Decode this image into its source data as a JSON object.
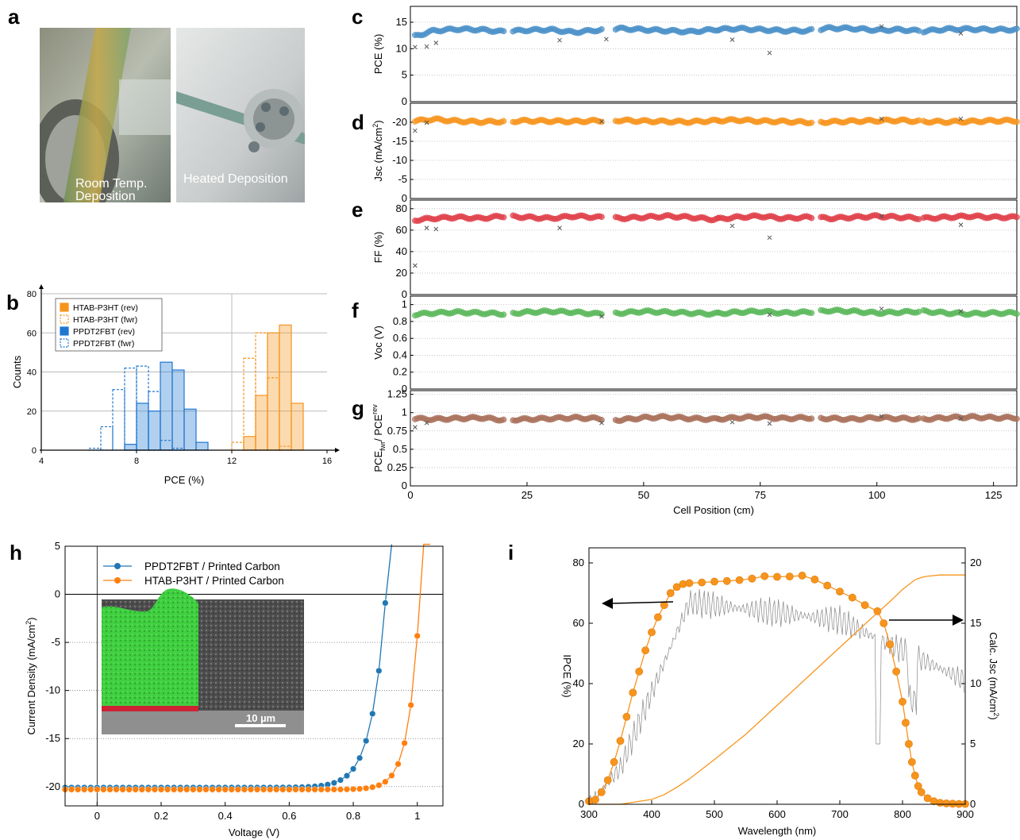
{
  "panel_letters": [
    "a",
    "b",
    "c",
    "d",
    "e",
    "f",
    "g",
    "h",
    "i"
  ],
  "photos": {
    "left_label_line1": "Room Temp.",
    "left_label_line2": "Deposition",
    "right_label": "Heated Deposition"
  },
  "colors": {
    "blue": "#4a90c8",
    "orange": "#f7941d",
    "red": "#e0404a",
    "green": "#5cb85c",
    "brown": "#a9705a",
    "grid": "#bbbbbb",
    "sem_green": "#33cc33",
    "sem_red": "#cc2233"
  },
  "chart_data": [
    {
      "id": "b",
      "type": "bar",
      "xlabel": "PCE (%)",
      "ylabel": "Counts",
      "xlim": [
        4,
        16
      ],
      "ylim": [
        0,
        80
      ],
      "xticks": [
        4,
        8,
        12,
        16
      ],
      "yticks": [
        0,
        20,
        40,
        60,
        80
      ],
      "bin_width": 0.5,
      "legend_position": "top-left",
      "series": [
        {
          "name": "HTAB-P3HT (rev)",
          "style": "filled",
          "color": "#f7941d",
          "bins": [
            12.5,
            13.0,
            13.5,
            14.0,
            14.5
          ],
          "values": [
            7,
            28,
            60,
            64,
            24
          ]
        },
        {
          "name": "HTAB-P3HT (fwr)",
          "style": "dashed",
          "color": "#f7941d",
          "bins": [
            12.0,
            12.5,
            13.0,
            13.5,
            14.0
          ],
          "values": [
            4,
            47,
            60,
            37,
            2
          ]
        },
        {
          "name": "PPDT2FBT (rev)",
          "style": "filled",
          "color": "#1f77d0",
          "bins": [
            7.5,
            8.0,
            8.5,
            9.0,
            9.5,
            10.0,
            10.5
          ],
          "values": [
            3,
            24,
            20,
            45,
            41,
            21,
            4
          ]
        },
        {
          "name": "PPDT2FBT (fwr)",
          "style": "dashed",
          "color": "#1f77d0",
          "bins": [
            6.0,
            6.5,
            7.0,
            7.5,
            8.0,
            8.5,
            9.0,
            9.5
          ],
          "values": [
            1,
            12,
            31,
            42,
            43,
            30,
            5,
            1
          ]
        }
      ]
    },
    {
      "id": "c-g",
      "type": "scatter",
      "xlabel": "Cell Position (cm)",
      "xlim": [
        0,
        130
      ],
      "xticks": [
        0,
        25,
        50,
        75,
        100,
        125
      ],
      "segments": [
        [
          1,
          20
        ],
        [
          22,
          41
        ],
        [
          44,
          66
        ],
        [
          66,
          86
        ],
        [
          88,
          109
        ],
        [
          110,
          130
        ]
      ],
      "panels": [
        {
          "id": "c",
          "ylabel": "PCE (%)",
          "ylim": [
            0,
            18
          ],
          "yticks": [
            0,
            5,
            10,
            15
          ],
          "color": "#4a90c8",
          "base": [
            12.1,
            13.4,
            13.7,
            13.6,
            13.2,
            13.5,
            13.6,
            13.1,
            13.5,
            13.8,
            13.6,
            13.4,
            13.2,
            13.6,
            13.8,
            13.6,
            13.4,
            13.4,
            13.9,
            13.8,
            13.5,
            13.6,
            13.3,
            13.7,
            13.7,
            13.6
          ],
          "crosses": [
            [
              1,
              10.3
            ],
            [
              3.5,
              10.4
            ],
            [
              5.5,
              11.1
            ],
            [
              32,
              11.6
            ],
            [
              42,
              11.8
            ],
            [
              69,
              11.7
            ],
            [
              77,
              9.2
            ],
            [
              101,
              14.2
            ],
            [
              118,
              12.9
            ]
          ]
        },
        {
          "id": "d",
          "ylabel": "Jsc (mA/cm2)",
          "ylim": [
            0,
            -25
          ],
          "yticks": [
            0,
            -5,
            -10,
            -15,
            -20
          ],
          "color": "#f7941d",
          "base": [
            -20.2,
            -20.8,
            -20.3,
            -20.1,
            -20.2,
            -20.4,
            -20.3,
            -20.2,
            -20.4,
            -20.5,
            -20.3,
            -20.2,
            -20.1,
            -20.4,
            -20.6,
            -20.3,
            -20.2,
            -20.0,
            -20.1,
            -20.3,
            -20.4,
            -20.5,
            -20.2,
            -20.1,
            -20.2,
            -20.4
          ],
          "crosses": [
            [
              1,
              -17.8
            ],
            [
              3.5,
              -19.9
            ],
            [
              41,
              -20.2
            ],
            [
              101,
              -20.9
            ],
            [
              118,
              -20.9
            ]
          ]
        },
        {
          "id": "e",
          "ylabel": "FF (%)",
          "ylim": [
            0,
            88
          ],
          "yticks": [
            0,
            20,
            40,
            60,
            80
          ],
          "color": "#e0404a",
          "base": [
            69,
            71,
            72,
            71,
            73,
            72,
            71,
            73,
            72,
            71,
            72,
            73,
            72,
            70,
            72,
            73,
            71,
            72,
            71,
            72,
            73,
            72,
            71,
            72,
            73,
            72
          ],
          "crosses": [
            [
              1,
              27
            ],
            [
              3.5,
              62
            ],
            [
              5.5,
              61
            ],
            [
              32,
              62
            ],
            [
              69,
              64
            ],
            [
              77,
              53
            ],
            [
              101,
              73
            ],
            [
              118,
              65
            ]
          ]
        },
        {
          "id": "f",
          "ylabel": "Voc (V)",
          "ylim": [
            0,
            1.1
          ],
          "yticks": [
            0,
            0.2,
            0.4,
            0.6,
            0.8,
            1
          ],
          "color": "#5cb85c",
          "base": [
            0.88,
            0.9,
            0.91,
            0.9,
            0.89,
            0.91,
            0.92,
            0.91,
            0.89,
            0.9,
            0.92,
            0.91,
            0.9,
            0.89,
            0.91,
            0.92,
            0.9,
            0.91,
            0.93,
            0.92,
            0.9,
            0.91,
            0.92,
            0.9,
            0.89,
            0.9
          ],
          "crosses": [
            [
              41,
              0.86
            ],
            [
              77,
              0.88
            ],
            [
              101,
              0.95
            ],
            [
              118,
              0.92
            ]
          ]
        },
        {
          "id": "g",
          "ylabel": "PCEfwr / PCErev",
          "ylim": [
            0,
            1.3
          ],
          "yticks": [
            0,
            0.25,
            0.5,
            0.75,
            1,
            1.25
          ],
          "color": "#a9705a",
          "base": [
            0.92,
            0.91,
            0.92,
            0.93,
            0.9,
            0.91,
            0.92,
            0.93,
            0.92,
            0.9,
            0.93,
            0.94,
            0.92,
            0.91,
            0.93,
            0.94,
            0.92,
            0.93,
            0.92,
            0.91,
            0.93,
            0.92,
            0.91,
            0.93,
            0.94,
            0.93
          ],
          "crosses": [
            [
              1,
              0.8
            ],
            [
              3.5,
              0.86
            ],
            [
              41,
              0.86
            ],
            [
              69,
              0.87
            ],
            [
              77,
              0.85
            ],
            [
              101,
              0.95
            ],
            [
              118,
              0.92
            ]
          ]
        }
      ]
    },
    {
      "id": "h",
      "type": "line",
      "xlabel": "Voltage (V)",
      "ylabel": "Current Density (mA/cm2)",
      "xlim": [
        -0.1,
        1.08
      ],
      "ylim": [
        -22,
        5
      ],
      "xticks": [
        0,
        0.2,
        0.4,
        0.6,
        0.8,
        1
      ],
      "yticks": [
        -20,
        -15,
        -10,
        -5,
        0,
        5
      ],
      "legend_position": "top-left",
      "series": [
        {
          "name": "PPDT2FBT / Printed Carbon",
          "color": "#1f77b4",
          "jsc": -20.1,
          "voc": 0.902,
          "n": 1.7,
          "vstep": 0.02,
          "vmax": 0.92
        },
        {
          "name": "HTAB-P3HT / Printed Carbon",
          "color": "#ff7f0e",
          "jsc": -20.3,
          "voc": 1.008,
          "n": 1.3,
          "vstep": 0.02,
          "vmax": 1.04
        }
      ],
      "inset_scale_bar": "10 µm"
    },
    {
      "id": "i",
      "type": "line",
      "xlabel": "Wavelength (nm)",
      "ylabel": "IPCE (%)",
      "ylabel_right": "Calc. Jsc (mA/cm2)",
      "xlim": [
        300,
        900
      ],
      "ylim": [
        0,
        85
      ],
      "ylim_right": [
        0,
        21.25
      ],
      "xticks": [
        300,
        400,
        500,
        600,
        700,
        800,
        900
      ],
      "yticks": [
        0,
        20,
        40,
        60,
        80
      ],
      "yticks_right": [
        0,
        5,
        10,
        15,
        20
      ],
      "series": [
        {
          "name": "IPCE",
          "x": [
            300,
            310,
            320,
            330,
            340,
            350,
            360,
            370,
            380,
            390,
            400,
            410,
            420,
            430,
            440,
            450,
            460,
            480,
            500,
            520,
            540,
            560,
            580,
            600,
            620,
            640,
            660,
            680,
            700,
            720,
            740,
            760,
            770,
            780,
            790,
            800,
            805,
            810,
            815,
            820,
            825,
            830,
            840,
            850,
            860,
            870,
            880,
            890,
            900
          ],
          "y": [
            1,
            1.5,
            4,
            8,
            14,
            21,
            29,
            37,
            44,
            51,
            57,
            62,
            66,
            70,
            72,
            73,
            73.3,
            73.5,
            73.8,
            74,
            74.3,
            74.8,
            75.6,
            75.4,
            75.5,
            75.8,
            74.5,
            72.5,
            70.5,
            68.5,
            66,
            64,
            60,
            53,
            44,
            34,
            27,
            20,
            14,
            9.5,
            6,
            4,
            2,
            1,
            0.5,
            0.3,
            0.2,
            0.1,
            0.1
          ]
        },
        {
          "name": "Calc. Jsc",
          "x": [
            300,
            350,
            400,
            420,
            440,
            460,
            480,
            500,
            550,
            600,
            650,
            700,
            750,
            780,
            800,
            810,
            820,
            830,
            840,
            860,
            900
          ],
          "y": [
            0,
            0,
            0.4,
            0.8,
            1.4,
            2.1,
            2.9,
            3.7,
            5.8,
            8.2,
            10.6,
            13.0,
            15.4,
            16.8,
            17.8,
            18.2,
            18.6,
            18.8,
            18.9,
            19.0,
            19.0
          ]
        }
      ]
    }
  ],
  "h_labels": {
    "ylabel_main": "Current Density (mA/cm",
    "ylabel_sup": "2",
    "ylabel_end": ")"
  },
  "i_labels": {
    "ylabel_right_main": "Calc. Jsc (mA/cm",
    "ylabel_right_sup": "2",
    "ylabel_right_end": ")"
  },
  "d_labels": {
    "ylabel_main": "Jsc (mA/cm",
    "ylabel_sup": "2",
    "ylabel_end": ")"
  },
  "g_labels": {
    "main1": "PCE",
    "sub1": "fwr",
    "main2": "/ PCE",
    "sub2": "rev"
  }
}
